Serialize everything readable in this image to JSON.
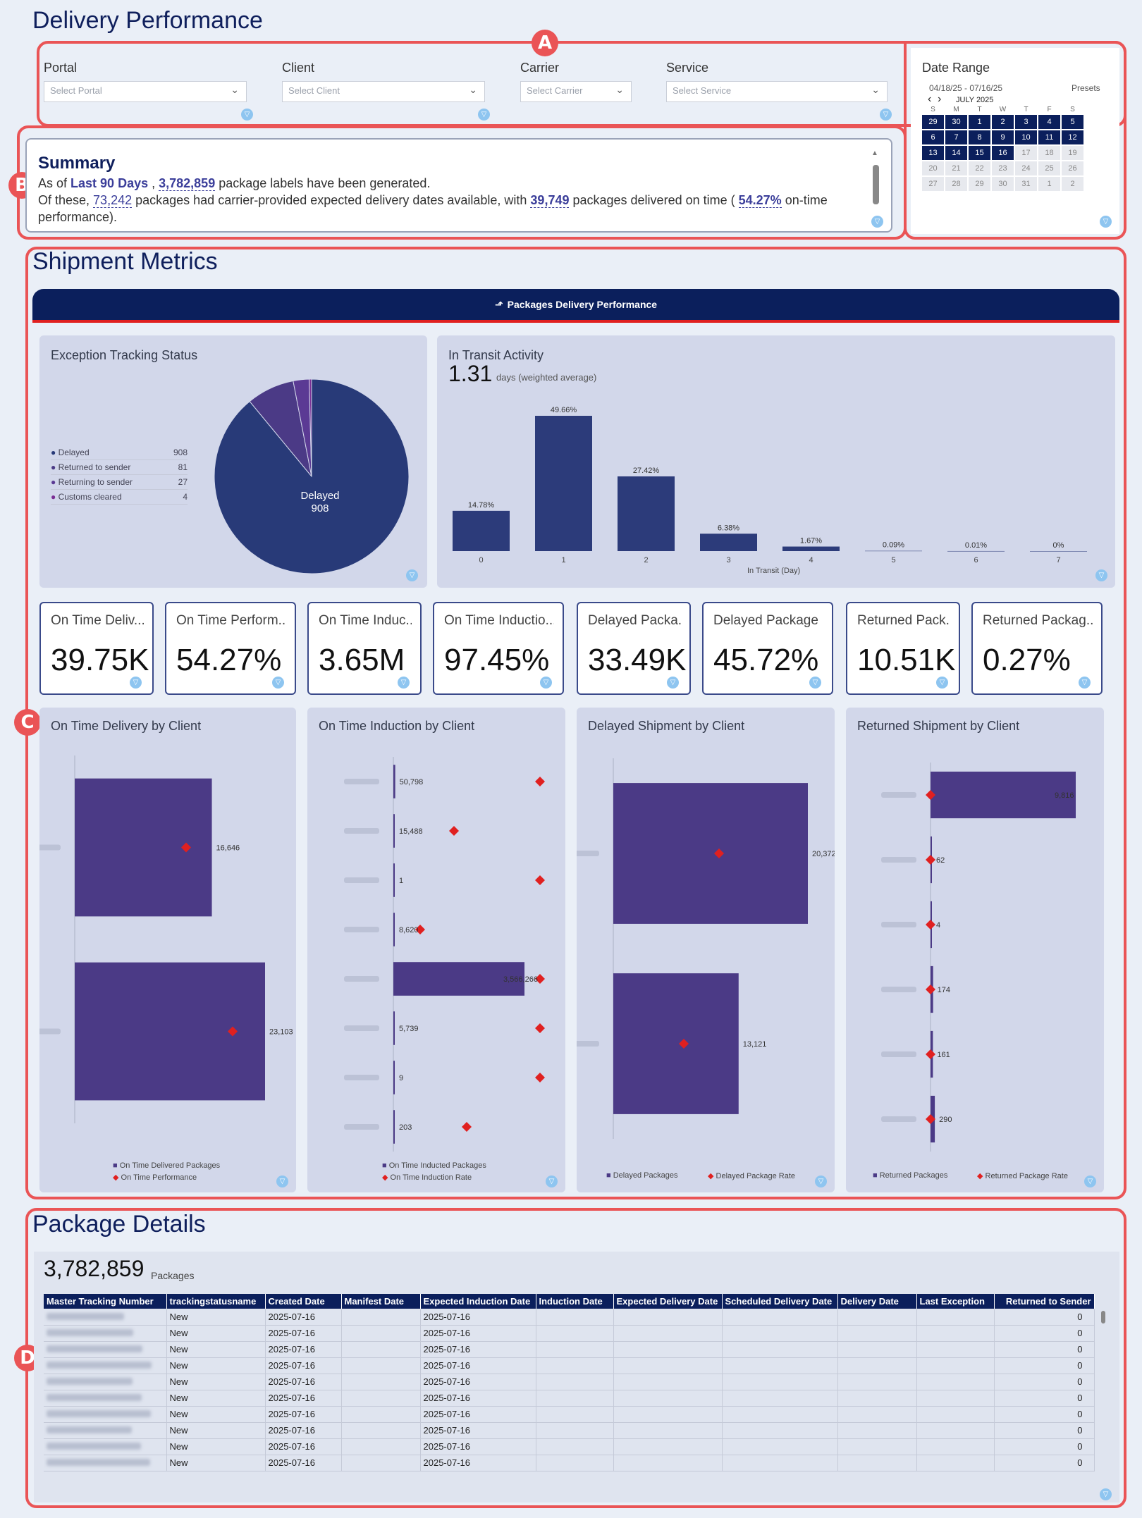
{
  "page": {
    "title": "Delivery Performance"
  },
  "markers": {
    "a": "A",
    "b": "B",
    "c": "C",
    "d": "D"
  },
  "filters": [
    {
      "label": "Portal",
      "placeholder": "Select Portal"
    },
    {
      "label": "Client",
      "placeholder": "Select Client"
    },
    {
      "label": "Carrier",
      "placeholder": "Select Carrier"
    },
    {
      "label": "Service",
      "placeholder": "Select Service"
    }
  ],
  "date_range": {
    "label": "Date Range",
    "value": "04/18/25 - 07/16/25",
    "presets": "Presets",
    "month": "JULY 2025",
    "days_header": [
      "S",
      "M",
      "T",
      "W",
      "T",
      "F",
      "S"
    ],
    "weeks": [
      [
        "29",
        "30",
        "1",
        "2",
        "3",
        "4",
        "5"
      ],
      [
        "6",
        "7",
        "8",
        "9",
        "10",
        "11",
        "12"
      ],
      [
        "13",
        "14",
        "15",
        "16",
        "17",
        "18",
        "19"
      ],
      [
        "20",
        "21",
        "22",
        "23",
        "24",
        "25",
        "26"
      ],
      [
        "27",
        "28",
        "29",
        "30",
        "31",
        "1",
        "2"
      ]
    ]
  },
  "summary": {
    "title": "Summary",
    "l1a": "As of ",
    "period": "Last 90 Days",
    "l1b": " , ",
    "labels": "3,782,859",
    "l1c": " package labels have been generated.",
    "l2a": "Of these, ",
    "expected": "73,242",
    "l2b": " packages had carrier-provided expected delivery dates available, with ",
    "ontime": "39,749",
    "l2c": " packages delivered on time ( ",
    "pct": "54.27%",
    "l2d": " on-time",
    "l3": "performance)."
  },
  "shipment": {
    "title": "Shipment Metrics",
    "banner": "Packages Delivery Performance"
  },
  "exception": {
    "title": "Exception Tracking Status",
    "legend": [
      {
        "name": "Delayed",
        "value": "908",
        "color": "#283a78"
      },
      {
        "name": "Returned to sender",
        "value": "81",
        "color": "#4b3a86"
      },
      {
        "name": "Returning to sender",
        "value": "27",
        "color": "#5b3a94"
      },
      {
        "name": "Customs cleared",
        "value": "4",
        "color": "#7a2e94"
      }
    ],
    "pie_label": "Delayed",
    "pie_value": "908"
  },
  "transit": {
    "title": "In Transit Activity",
    "value": "1.31",
    "unit": "days (weighted average)",
    "xlabel": "In Transit (Day)"
  },
  "chart_data": [
    {
      "type": "pie",
      "title": "Exception Tracking Status",
      "categories": [
        "Delayed",
        "Returned to sender",
        "Returning to sender",
        "Customs cleared"
      ],
      "values": [
        908,
        81,
        27,
        4
      ]
    },
    {
      "type": "bar",
      "title": "In Transit Activity",
      "xlabel": "In Transit (Day)",
      "categories": [
        "0",
        "1",
        "2",
        "3",
        "4",
        "5",
        "6",
        "7"
      ],
      "values": [
        14.78,
        49.66,
        27.42,
        6.38,
        1.67,
        0.09,
        0.01,
        0
      ],
      "labels": [
        "14.78%",
        "49.66%",
        "27.42%",
        "6.38%",
        "1.67%",
        "0.09%",
        "0.01%",
        "0%"
      ],
      "ylim": [
        0,
        55
      ]
    },
    {
      "type": "bar",
      "title": "On Time Delivery by Client",
      "values": [
        16646,
        23103
      ],
      "labels": [
        "16,646",
        "23,103"
      ],
      "series": [
        {
          "name": "On Time Delivered Packages"
        },
        {
          "name": "On Time Performance"
        }
      ]
    },
    {
      "type": "bar",
      "title": "On Time Induction by Client",
      "values": [
        50798,
        15488,
        1,
        8620,
        3566266,
        5739,
        9,
        203
      ],
      "labels": [
        "50,798",
        "15,488",
        "1",
        "8,620",
        "3,566,266",
        "5,739",
        "9",
        "203"
      ],
      "series": [
        {
          "name": "On Time Inducted Packages"
        },
        {
          "name": "On Time Induction Rate"
        }
      ]
    },
    {
      "type": "bar",
      "title": "Delayed Shipment by Client",
      "values": [
        20372,
        13121
      ],
      "labels": [
        "20,372",
        "13,121"
      ],
      "series": [
        {
          "name": "Delayed Packages"
        },
        {
          "name": "Delayed Package Rate"
        }
      ]
    },
    {
      "type": "bar",
      "title": "Returned Shipment by Client",
      "values": [
        9816,
        62,
        4,
        174,
        161,
        290
      ],
      "labels": [
        "9,816",
        "62",
        "4",
        "174",
        "161",
        "290"
      ],
      "series": [
        {
          "name": "Returned Packages"
        },
        {
          "name": "Returned Package Rate"
        }
      ]
    }
  ],
  "kpis": [
    {
      "label": "On Time Deliv...",
      "value": "39.75K"
    },
    {
      "label": "On Time Perform...",
      "value": "54.27%"
    },
    {
      "label": "On Time Induc...",
      "value": "3.65M"
    },
    {
      "label": "On Time Inductio...",
      "value": "97.45%"
    },
    {
      "label": "Delayed Packa...",
      "value": "33.49K"
    },
    {
      "label": "Delayed Package ...",
      "value": "45.72%"
    },
    {
      "label": "Returned Pack...",
      "value": "10.51K"
    },
    {
      "label": "Returned Packag...",
      "value": "0.27%"
    }
  ],
  "package": {
    "title": "Package Details",
    "count": "3,782,859",
    "count_unit": "Packages",
    "columns": [
      "Master Tracking Number",
      "trackingstatusname",
      "Created Date",
      "Manifest Date",
      "Expected Induction Date",
      "Induction Date",
      "Expected Delivery Date",
      "Scheduled Delivery Date",
      "Delivery Date",
      "Last Exception",
      "Returned to Sender"
    ],
    "row_status": "New",
    "row_created": "2025-07-16",
    "row_expected_induction": "2025-07-16",
    "row_returned": "0",
    "row_count": 10
  },
  "colors": {
    "navy": "#0b1f5c",
    "bar": "#4b3a86",
    "diamond": "#e02020",
    "red_frame": "#ea5456"
  }
}
